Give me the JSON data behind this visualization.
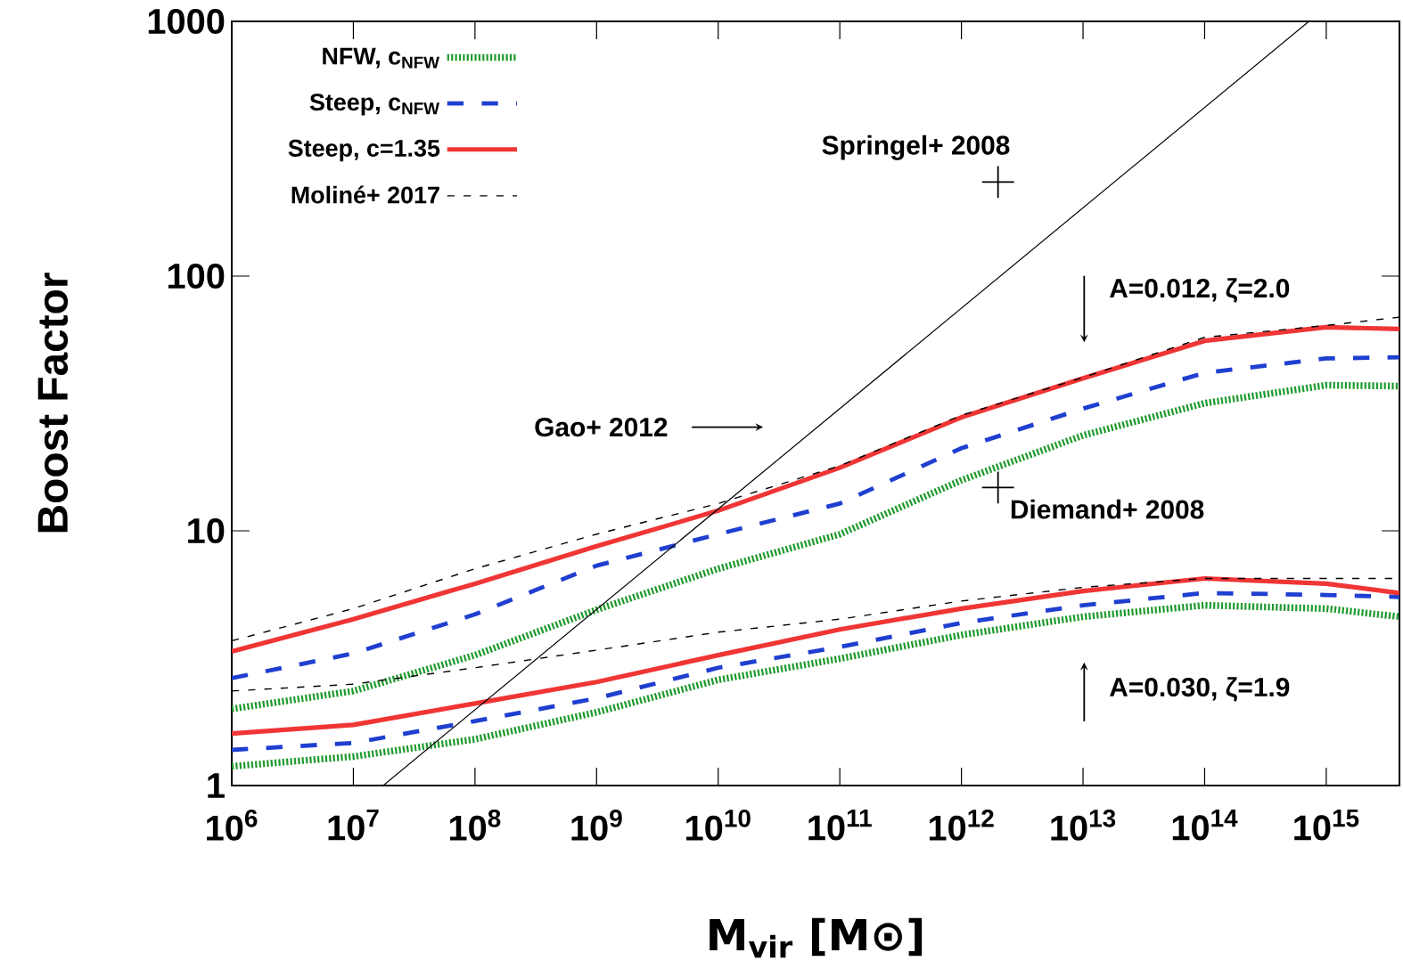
{
  "chart_data": {
    "type": "line",
    "xlabel": "M$_{vir}$ [M⊙]",
    "ylabel": "Boost Factor",
    "log": "xy",
    "legend": "top left",
    "xlim": [
      1000000,
      4000000000000000
    ],
    "ylim": [
      1,
      1000
    ],
    "xticks": [
      {
        "value": 1000000,
        "label": "10$^{6}$"
      },
      {
        "value": 10000000,
        "label": "10$^{7}$"
      },
      {
        "value": 100000000,
        "label": "10$^{8}$"
      },
      {
        "value": 1000000000,
        "label": "10$^{9}$"
      },
      {
        "value": 10000000000,
        "label": "10$^{10}$"
      },
      {
        "value": 100000000000,
        "label": "10$^{11}$"
      },
      {
        "value": 1000000000000,
        "label": "10$^{12}$"
      },
      {
        "value": 10000000000000,
        "label": "10$^{13}$"
      },
      {
        "value": 100000000000000,
        "label": "10$^{14}$"
      },
      {
        "value": 1000000000000000,
        "label": "10$^{15}$"
      }
    ],
    "yticks": [
      1,
      10,
      100,
      1000
    ],
    "x": [
      1000000,
      10000000,
      100000000,
      1000000000,
      10000000000,
      100000000000,
      1000000000000,
      10000000000000,
      100000000000000,
      1000000000000000,
      4000000000000000
    ],
    "series": [
      {
        "name": "NFW, c$_{NFW}$",
        "color": "#1e9a2c",
        "line_style": "dotted",
        "values": [
          2.0,
          2.35,
          3.25,
          4.9,
          7.1,
          9.7,
          15.8,
          23.7,
          31.7,
          37.3,
          37
        ]
      },
      {
        "name": "Steep, c$_{NFW}$",
        "color": "#1f3fd0",
        "line_style": "dashed",
        "values": [
          2.64,
          3.3,
          4.7,
          7.3,
          9.7,
          12.8,
          21.1,
          30.2,
          41.7,
          47.5,
          48
        ]
      },
      {
        "name": "Steep, c=1.35",
        "color": "#f03535",
        "line_style": "solid",
        "values": [
          3.36,
          4.5,
          6.2,
          8.7,
          12.0,
          17.7,
          27.9,
          39.7,
          55.7,
          63,
          62
        ]
      },
      {
        "name": "Moliné+ 2017",
        "color": "#000000",
        "line_style": "dashed",
        "values": [
          3.7,
          4.95,
          7.1,
          9.7,
          12.8,
          18,
          28.4,
          40,
          57.5,
          64,
          69
        ]
      },
      {
        "color": "#1e9a2c",
        "line_style": "dotted",
        "values": [
          1.19,
          1.3,
          1.52,
          1.94,
          2.6,
          3.15,
          3.9,
          4.6,
          5.1,
          4.95,
          4.6
        ]
      },
      {
        "color": "#1f3fd0",
        "line_style": "dashed",
        "values": [
          1.38,
          1.47,
          1.79,
          2.2,
          2.9,
          3.5,
          4.35,
          5.1,
          5.7,
          5.6,
          5.5
        ]
      },
      {
        "color": "#f03535",
        "line_style": "solid",
        "values": [
          1.6,
          1.73,
          2.1,
          2.55,
          3.25,
          4.1,
          4.95,
          5.8,
          6.5,
          6.2,
          5.7
        ]
      },
      {
        "color": "#000000",
        "line_style": "dashed",
        "values": [
          2.35,
          2.5,
          2.9,
          3.4,
          4.0,
          4.5,
          5.3,
          6.0,
          6.5,
          6.5,
          6.5
        ]
      },
      {
        "type": "line",
        "color": "#000000",
        "line_style": "solid",
        "x": [
          17600000,
          720000000000000
        ],
        "values": [
          1,
          1000
        ]
      },
      {
        "type": "scatter",
        "color": "#000000",
        "marker": "cross",
        "x": [
          2000000000000,
          2000000000000
        ],
        "values": [
          234,
          14.8
        ]
      }
    ],
    "annotations": [
      "Springel+ 2008",
      "Diemand+ 2008",
      "Gao+ 2012",
      "A=0.012, ζ=2.0",
      "A=0.030, ζ=1.9"
    ]
  }
}
